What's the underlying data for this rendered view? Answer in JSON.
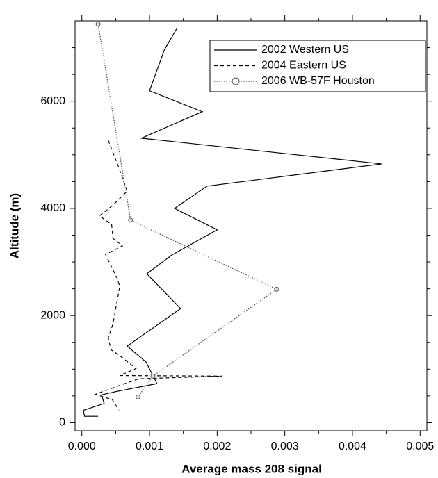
{
  "chart_data": {
    "type": "line",
    "xlabel": "Average mass 208 signal",
    "ylabel": "Altitude (m)",
    "xlim": [
      -0.0001,
      0.0051
    ],
    "ylim": [
      -150,
      7500
    ],
    "xticks": [
      {
        "value": 0,
        "label": "0.000"
      },
      {
        "value": 0.001,
        "label": "0.001"
      },
      {
        "value": 0.002,
        "label": "0.002"
      },
      {
        "value": 0.003,
        "label": "0.003"
      },
      {
        "value": 0.004,
        "label": "0.004"
      },
      {
        "value": 0.005,
        "label": "0.005"
      }
    ],
    "yticks": [
      0,
      2000,
      4000,
      6000
    ],
    "legend": "upper right",
    "series": [
      {
        "name": "2002 Western US",
        "color": "#000000",
        "dash": "solid",
        "x": [
          0.0014,
          0.00122,
          0.001,
          0.00178,
          0.00088,
          0.00443,
          0.00185,
          0.00137,
          0.002,
          0.00133,
          0.00096,
          0.00146,
          0.00067,
          0.00095,
          0.00111,
          0.0005,
          0.00029,
          0.00033,
          2e-05,
          4e-05,
          0.00024
        ],
        "values": [
          7350,
          6960,
          6195,
          5805,
          5310,
          4830,
          4415,
          4000,
          3600,
          3130,
          2780,
          2130,
          1430,
          1130,
          730,
          580,
          520,
          360,
          230,
          120,
          120
        ]
      },
      {
        "name": "2004 Eastern US",
        "color": "#000000",
        "dash": "dashed",
        "x": [
          0.00039,
          0.00055,
          0.00067,
          0.00045,
          0.00026,
          0.00044,
          0.00046,
          0.0006,
          0.00035,
          0.00052,
          0.00056,
          0.00046,
          0.00039,
          0.00043,
          0.00062,
          0.0008,
          0.00056,
          0.00208,
          0.00084,
          0.0006,
          0.0002,
          0.00045,
          0.00055
        ],
        "values": [
          5270,
          4750,
          4320,
          4050,
          3860,
          3700,
          3440,
          3300,
          3140,
          2700,
          2545,
          1845,
          1585,
          1365,
          1195,
          1010,
          880,
          870,
          820,
          715,
          530,
          430,
          235
        ]
      },
      {
        "name": "2006 WB-57F Houston",
        "color": "#555555",
        "dash": "dotted",
        "marker": "circle",
        "x": [
          0.00024,
          0.00072,
          0.00288,
          0.00105,
          0.00083
        ],
        "values": [
          7440,
          3780,
          2490,
          870,
          480
        ]
      }
    ]
  }
}
